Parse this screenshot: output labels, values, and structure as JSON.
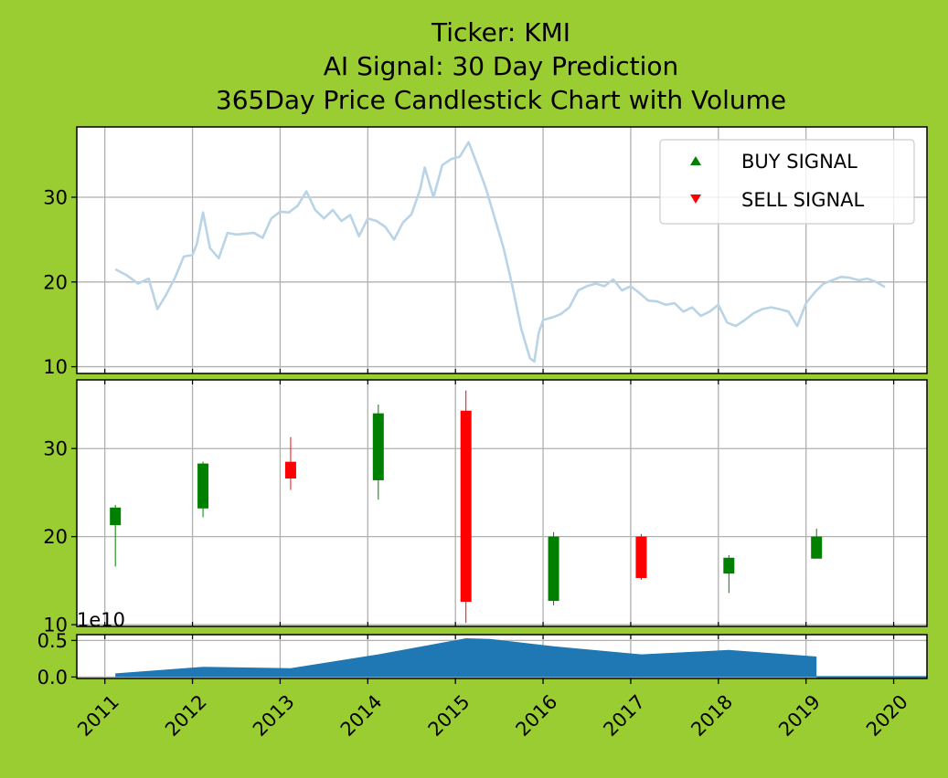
{
  "page": {
    "background": "#9acd32"
  },
  "title_lines": [
    "Ticker: KMI",
    "AI Signal: 30 Day Prediction",
    "365Day Price Candlestick Chart with Volume"
  ],
  "legend": {
    "placement": "top-right",
    "items": [
      {
        "label": "BUY SIGNAL",
        "marker": "triangle-up",
        "color": "#008000"
      },
      {
        "label": "SELL SIGNAL",
        "marker": "triangle-down",
        "color": "#ff0000"
      }
    ]
  },
  "volume_offset_label": "1e10",
  "x_axis": {
    "range": [
      2010.68,
      2020.38
    ],
    "ticks": [
      "2011",
      "2012",
      "2013",
      "2014",
      "2015",
      "2016",
      "2017",
      "2018",
      "2019",
      "2020"
    ],
    "tick_values": [
      2011,
      2012,
      2013,
      2014,
      2015,
      2016,
      2017,
      2018,
      2019,
      2020
    ]
  },
  "chart_data": [
    {
      "type": "line",
      "panel": "price",
      "grid": true,
      "ylim": [
        9.2,
        38.3
      ],
      "yticks": [
        10,
        20,
        30
      ],
      "color": "#b9d4e6",
      "x": [
        2011.12,
        2011.25,
        2011.38,
        2011.5,
        2011.6,
        2011.7,
        2011.8,
        2011.9,
        2012.0,
        2012.05,
        2012.12,
        2012.2,
        2012.3,
        2012.4,
        2012.5,
        2012.6,
        2012.7,
        2012.8,
        2012.9,
        2013.0,
        2013.1,
        2013.2,
        2013.3,
        2013.4,
        2013.5,
        2013.6,
        2013.7,
        2013.8,
        2013.9,
        2014.0,
        2014.1,
        2014.2,
        2014.3,
        2014.4,
        2014.5,
        2014.6,
        2014.65,
        2014.75,
        2014.85,
        2014.95,
        2015.05,
        2015.15,
        2015.25,
        2015.35,
        2015.45,
        2015.55,
        2015.65,
        2015.75,
        2015.85,
        2015.9,
        2015.95,
        2016.0,
        2016.1,
        2016.2,
        2016.3,
        2016.4,
        2016.5,
        2016.6,
        2016.7,
        2016.8,
        2016.9,
        2017.0,
        2017.1,
        2017.2,
        2017.3,
        2017.4,
        2017.5,
        2017.6,
        2017.7,
        2017.8,
        2017.9,
        2018.0,
        2018.1,
        2018.2,
        2018.3,
        2018.4,
        2018.5,
        2018.6,
        2018.7,
        2018.8,
        2018.9,
        2019.0,
        2019.1,
        2019.2,
        2019.3,
        2019.4,
        2019.5,
        2019.6,
        2019.7,
        2019.8,
        2019.9
      ],
      "y": [
        21.5,
        20.8,
        19.8,
        20.4,
        16.8,
        18.5,
        20.5,
        23.0,
        23.2,
        24.5,
        28.2,
        24.0,
        22.8,
        25.8,
        25.6,
        25.7,
        25.8,
        25.2,
        27.5,
        28.3,
        28.2,
        29.0,
        30.7,
        28.5,
        27.5,
        28.5,
        27.2,
        27.9,
        25.4,
        27.5,
        27.2,
        26.5,
        25.0,
        27.0,
        28.0,
        31.0,
        33.5,
        30.0,
        33.8,
        34.5,
        34.8,
        36.5,
        33.8,
        31.0,
        27.5,
        24.0,
        19.5,
        14.5,
        11.0,
        10.6,
        14.0,
        15.5,
        15.8,
        16.2,
        17.0,
        19.0,
        19.5,
        19.8,
        19.5,
        20.3,
        19.0,
        19.5,
        18.7,
        17.8,
        17.7,
        17.3,
        17.5,
        16.5,
        17.0,
        16.0,
        16.5,
        17.3,
        15.2,
        14.8,
        15.5,
        16.3,
        16.8,
        17.0,
        16.8,
        16.5,
        14.8,
        17.5,
        18.8,
        19.8,
        20.2,
        20.6,
        20.5,
        20.2,
        20.4,
        20.0,
        19.4
      ]
    },
    {
      "type": "candlestick",
      "panel": "candles",
      "grid": true,
      "ylim": [
        9.8,
        37.8
      ],
      "yticks": [
        10,
        20,
        30
      ],
      "up_color": "#008000",
      "down_color": "#ff0000",
      "x": [
        2011.12,
        2012.12,
        2013.12,
        2014.12,
        2015.12,
        2016.12,
        2017.12,
        2018.12,
        2019.12
      ],
      "open": [
        21.3,
        23.2,
        28.5,
        26.4,
        34.3,
        12.7,
        20.0,
        15.8,
        17.5
      ],
      "close": [
        23.3,
        28.3,
        26.6,
        34.0,
        12.6,
        20.0,
        15.3,
        17.6,
        20.0
      ],
      "high": [
        23.6,
        28.5,
        31.3,
        35.0,
        36.6,
        20.5,
        20.3,
        17.9,
        20.9
      ],
      "low": [
        16.6,
        22.2,
        25.3,
        24.2,
        10.2,
        12.2,
        15.1,
        13.6,
        17.5
      ]
    },
    {
      "type": "area",
      "panel": "volume",
      "grid": true,
      "ylim": [
        -0.02,
        0.58
      ],
      "yticks": [
        0.0,
        0.5
      ],
      "ytick_labels": [
        "0.0",
        "0.5"
      ],
      "scale_label": "1e10",
      "color": "#1f77b4",
      "x": [
        2011.12,
        2012.12,
        2013.12,
        2014.12,
        2015.12,
        2015.4,
        2016.12,
        2017.12,
        2018.12,
        2019.12
      ],
      "values": [
        0.05,
        0.14,
        0.12,
        0.31,
        0.53,
        0.52,
        0.42,
        0.31,
        0.37,
        0.28
      ]
    }
  ]
}
